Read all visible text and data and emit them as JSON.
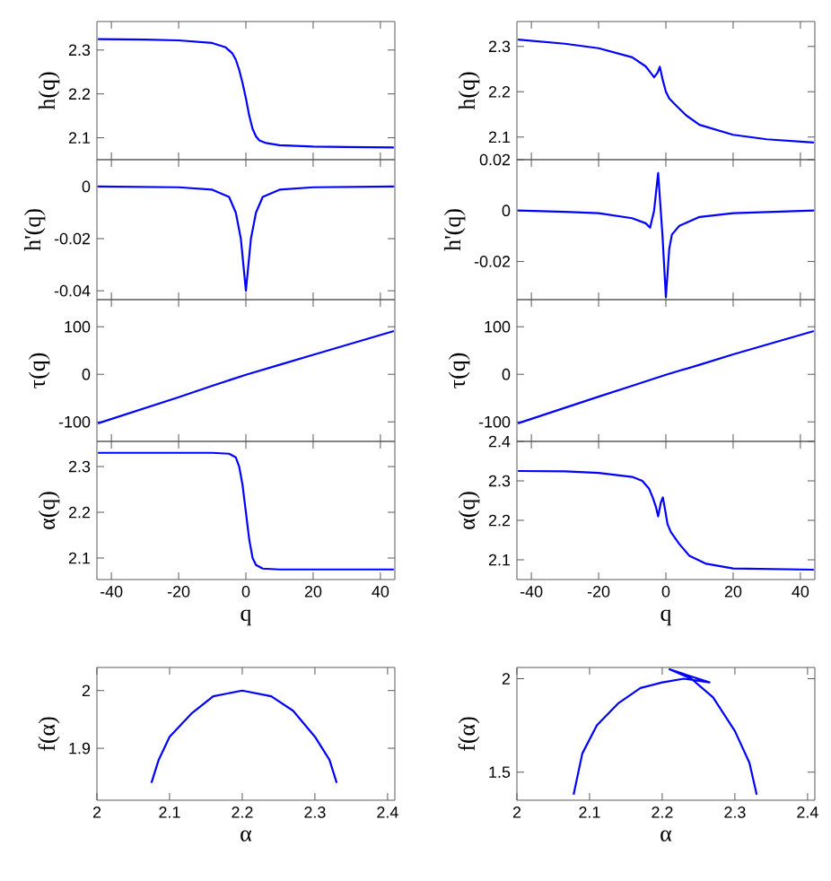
{
  "chart_data": [
    {
      "type": "line",
      "ylabel": "h(q)",
      "xlim": [
        -44.3,
        44.3
      ],
      "ylim": [
        2.05,
        2.365
      ],
      "xticks": [
        -40,
        -20,
        0,
        20,
        40
      ],
      "yticks": [
        2.1,
        2.2,
        2.3
      ],
      "tick_labels": "y",
      "series": [
        {
          "color": "#0000ff",
          "x": [
            -44,
            -30,
            -20,
            -10,
            -6,
            -4,
            -3,
            -2,
            -1,
            0,
            1,
            2,
            3,
            4,
            6,
            10,
            20,
            30,
            44
          ],
          "values": [
            2.325,
            2.324,
            2.322,
            2.316,
            2.306,
            2.292,
            2.278,
            2.255,
            2.225,
            2.19,
            2.15,
            2.12,
            2.103,
            2.094,
            2.088,
            2.083,
            2.08,
            2.079,
            2.078
          ]
        }
      ]
    },
    {
      "type": "line",
      "ylabel": "h(q)",
      "xlim": [
        -44.3,
        44.3
      ],
      "ylim": [
        2.05,
        2.355
      ],
      "xticks": [
        -40,
        -20,
        0,
        20,
        40
      ],
      "yticks": [
        2.1,
        2.2,
        2.3
      ],
      "tick_labels": "y",
      "series": [
        {
          "color": "#0000ff",
          "x": [
            -44,
            -30,
            -20,
            -10,
            -6,
            -4,
            -3.5,
            -2.5,
            -1.8,
            -1,
            0,
            1,
            3,
            6,
            10,
            20,
            30,
            44
          ],
          "values": [
            2.315,
            2.306,
            2.296,
            2.276,
            2.256,
            2.237,
            2.232,
            2.242,
            2.255,
            2.228,
            2.2,
            2.185,
            2.17,
            2.148,
            2.127,
            2.105,
            2.095,
            2.088
          ]
        }
      ]
    },
    {
      "type": "line",
      "ylabel": "h'(q)",
      "xlim": [
        -44.3,
        44.3
      ],
      "ylim": [
        -0.0434,
        0.0103
      ],
      "xticks": [
        -40,
        -20,
        0,
        20,
        40
      ],
      "yticks": [
        -0.04,
        -0.02,
        0
      ],
      "tick_labels": "y",
      "series": [
        {
          "color": "#0000ff",
          "x": [
            -44,
            -20,
            -10,
            -5,
            -3,
            -1.5,
            0,
            1.5,
            3,
            5,
            10,
            20,
            44
          ],
          "values": [
            0,
            -0.0003,
            -0.0012,
            -0.004,
            -0.01,
            -0.02,
            -0.04,
            -0.02,
            -0.01,
            -0.004,
            -0.0012,
            -0.0003,
            0
          ]
        }
      ]
    },
    {
      "type": "line",
      "ylabel": "h'(q)",
      "xlim": [
        -44.3,
        44.3
      ],
      "ylim": [
        -0.035,
        0.02
      ],
      "xticks": [
        -40,
        -20,
        0,
        20,
        40
      ],
      "yticks": [
        -0.02,
        0,
        0.02
      ],
      "tick_labels": "y",
      "series": [
        {
          "color": "#0000ff",
          "x": [
            -44,
            -30,
            -20,
            -10,
            -6,
            -4.7,
            -3.5,
            -2.3,
            -1,
            0,
            1,
            1.8,
            4,
            10,
            20,
            44
          ],
          "values": [
            0,
            -0.0005,
            -0.001,
            -0.003,
            -0.005,
            -0.0067,
            0,
            0.0148,
            -0.01,
            -0.034,
            -0.015,
            -0.0094,
            -0.006,
            -0.0025,
            -0.001,
            0
          ]
        }
      ]
    },
    {
      "type": "line",
      "ylabel": "τ(q)",
      "xlim": [
        -44.3,
        44.3
      ],
      "ylim": [
        -141,
        157
      ],
      "xticks": [
        -40,
        -20,
        0,
        20,
        40
      ],
      "yticks": [
        -100,
        0,
        100
      ],
      "tick_labels": "y",
      "series": [
        {
          "color": "#0000ff",
          "x": [
            -44,
            -20,
            -10,
            0,
            10,
            20,
            44
          ],
          "values": [
            -103,
            -48,
            -24,
            -1,
            20,
            41,
            91
          ]
        }
      ]
    },
    {
      "type": "line",
      "ylabel": "τ(q)",
      "xlim": [
        -44.3,
        44.3
      ],
      "ylim": [
        -141,
        157
      ],
      "xticks": [
        -40,
        -20,
        0,
        20,
        40
      ],
      "yticks": [
        -100,
        0,
        100
      ],
      "tick_labels": "y",
      "series": [
        {
          "color": "#0000ff",
          "x": [
            -44,
            -20,
            -10,
            0,
            10,
            20,
            44
          ],
          "values": [
            -103,
            -47,
            -24,
            -1,
            20,
            42,
            91
          ]
        }
      ]
    },
    {
      "type": "line",
      "xlabel": "q",
      "ylabel": "α(q)",
      "xlim": [
        -44.3,
        44.3
      ],
      "ylim": [
        2.053,
        2.355
      ],
      "xticks": [
        -40,
        -20,
        0,
        20,
        40
      ],
      "yticks": [
        2.1,
        2.2,
        2.3
      ],
      "series": [
        {
          "color": "#0000ff",
          "x": [
            -44,
            -10,
            -5,
            -3,
            -2,
            -1,
            0,
            1,
            2,
            3,
            5,
            10,
            44
          ],
          "values": [
            2.33,
            2.33,
            2.328,
            2.32,
            2.3,
            2.26,
            2.2,
            2.14,
            2.1,
            2.085,
            2.077,
            2.075,
            2.075
          ]
        }
      ]
    },
    {
      "type": "line",
      "xlabel": "q",
      "ylabel": "α(q)",
      "xlim": [
        -44.3,
        44.3
      ],
      "ylim": [
        2.05,
        2.4
      ],
      "xticks": [
        -40,
        -20,
        0,
        20,
        40
      ],
      "yticks": [
        2.1,
        2.2,
        2.3,
        2.4
      ],
      "series": [
        {
          "color": "#0000ff",
          "x": [
            -44,
            -30,
            -20,
            -10,
            -7,
            -5,
            -4,
            -3,
            -2.3,
            -1.5,
            -0.9,
            -0.3,
            0.5,
            1.5,
            4,
            7,
            12,
            20,
            44
          ],
          "values": [
            2.325,
            2.324,
            2.32,
            2.31,
            2.3,
            2.28,
            2.26,
            2.235,
            2.21,
            2.245,
            2.258,
            2.23,
            2.19,
            2.17,
            2.14,
            2.11,
            2.09,
            2.078,
            2.075
          ]
        }
      ]
    },
    {
      "type": "line",
      "xlabel": "α",
      "ylabel": "f(α)",
      "xlim": [
        2,
        2.41
      ],
      "ylim": [
        1.81,
        2.04
      ],
      "xticks": [
        2,
        2.1,
        2.2,
        2.3,
        2.4
      ],
      "yticks": [
        1.9,
        2
      ],
      "series": [
        {
          "color": "#0000ff",
          "x": [
            2.075,
            2.085,
            2.1,
            2.13,
            2.16,
            2.2,
            2.24,
            2.27,
            2.3,
            2.32,
            2.33
          ],
          "values": [
            1.84,
            1.88,
            1.92,
            1.96,
            1.99,
            2.0,
            1.99,
            1.965,
            1.92,
            1.88,
            1.84
          ]
        }
      ]
    },
    {
      "type": "line",
      "xlabel": "α",
      "ylabel": "f(α)",
      "xlim": [
        2,
        2.41
      ],
      "ylim": [
        1.35,
        2.06
      ],
      "xticks": [
        2,
        2.1,
        2.2,
        2.3,
        2.4
      ],
      "yticks": [
        1.5,
        2
      ],
      "series": [
        {
          "color": "#0000ff",
          "x": [
            2.078,
            2.09,
            2.11,
            2.14,
            2.17,
            2.2,
            2.23,
            2.265,
            2.21,
            2.24,
            2.27,
            2.3,
            2.32,
            2.33
          ],
          "values": [
            1.38,
            1.6,
            1.75,
            1.87,
            1.95,
            1.98,
            2.0,
            1.98,
            2.05,
            2.0,
            1.9,
            1.72,
            1.55,
            1.38
          ]
        }
      ]
    }
  ]
}
